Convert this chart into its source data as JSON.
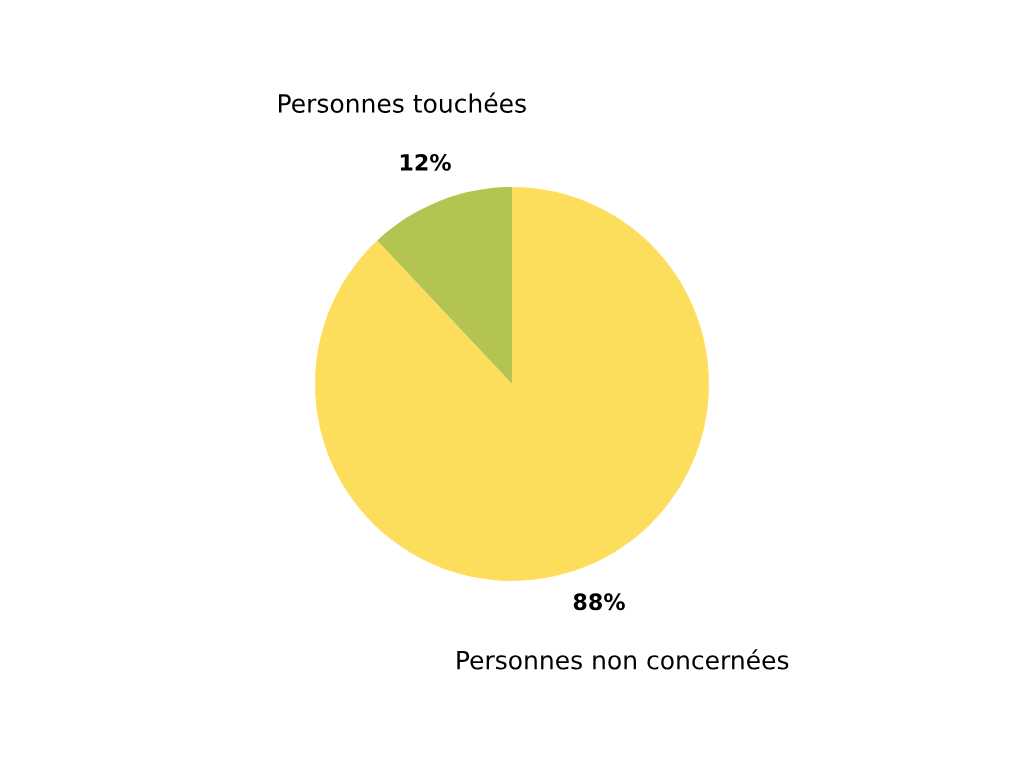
{
  "chart_data": {
    "type": "pie",
    "categories": [
      "Personnes non concernées",
      "Personnes touchées"
    ],
    "values": [
      88,
      12
    ],
    "colors": [
      "#fddd5c",
      "#b3c451"
    ],
    "value_labels": [
      "88%",
      "12%"
    ]
  }
}
